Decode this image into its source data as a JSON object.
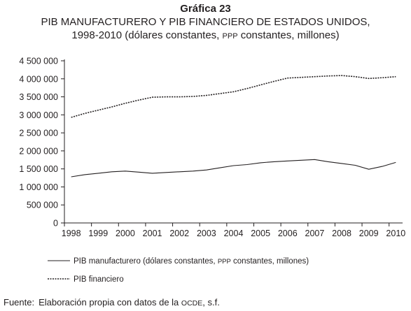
{
  "titles": {
    "line1": "Gráfica 23",
    "line2": "PIB MANUFACTURERO Y PIB FINANCIERO DE ESTADOS UNIDOS,",
    "line3_a": "1998-2010 (dólares constantes, ",
    "line3_ppp": "PPP",
    "line3_b": " constantes, millones)"
  },
  "source": {
    "label": "Fuente:",
    "text_a": "Elaboración propia con datos de la ",
    "text_ocde": "OCDE",
    "text_b": ", s.f."
  },
  "chart_data": {
    "type": "line",
    "categories": [
      "1998",
      "1999",
      "2000",
      "2001",
      "2002",
      "2003",
      "2004",
      "2005",
      "2006",
      "2007",
      "2008",
      "2009",
      "2010"
    ],
    "x": [
      1998,
      1998.5,
      1999,
      1999.5,
      2000,
      2000.5,
      2001,
      2001.5,
      2002,
      2002.5,
      2003,
      2003.5,
      2004,
      2004.5,
      2005,
      2005.5,
      2006,
      2006.5,
      2007,
      2007.5,
      2008,
      2008.5,
      2009,
      2009.5,
      2010
    ],
    "ylim": [
      0,
      4500000
    ],
    "yticks": [
      0,
      500000,
      1000000,
      1500000,
      2000000,
      2500000,
      3000000,
      3500000,
      4000000,
      4500000
    ],
    "ytick_labels": [
      "0",
      "500 000",
      "1 000 000",
      "1 500 000",
      "2 000 000",
      "2 500 000",
      "3 000 000",
      "3 500 000",
      "4 000 000",
      "4 500 000"
    ],
    "grid": false,
    "legend_position": "bottom",
    "series": [
      {
        "name": "PIB manufacturero (dólares constantes, PPP constantes, millones)",
        "legend_a": "PIB manufacturero (dólares constantes, ",
        "legend_ppp": "PPP",
        "legend_b": " constantes, millones)",
        "style": "solid",
        "color": "#231f20",
        "values": [
          1280000,
          1340000,
          1380000,
          1420000,
          1440000,
          1410000,
          1380000,
          1400000,
          1420000,
          1440000,
          1470000,
          1530000,
          1590000,
          1620000,
          1670000,
          1700000,
          1720000,
          1740000,
          1760000,
          1700000,
          1650000,
          1600000,
          1490000,
          1570000,
          1680000
        ]
      },
      {
        "name": "PIB financiero",
        "legend_a": "PIB financiero",
        "style": "dotted",
        "color": "#231f20",
        "values": [
          2930000,
          3040000,
          3130000,
          3220000,
          3320000,
          3410000,
          3490000,
          3500000,
          3500000,
          3510000,
          3540000,
          3590000,
          3640000,
          3730000,
          3830000,
          3930000,
          4020000,
          4040000,
          4060000,
          4080000,
          4090000,
          4060000,
          4010000,
          4030000,
          4060000
        ]
      }
    ]
  }
}
